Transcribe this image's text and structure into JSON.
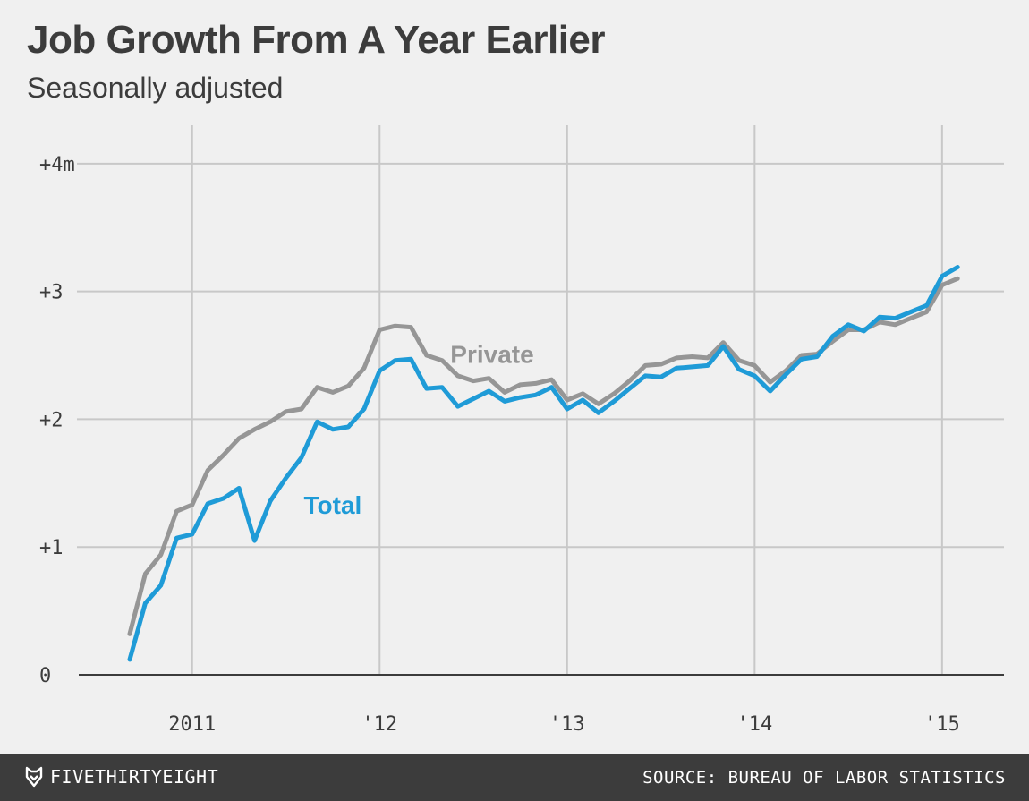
{
  "header": {
    "title": "Job Growth From A Year Earlier",
    "subtitle": "Seasonally adjusted"
  },
  "footer": {
    "brand": "FIVETHIRTYEIGHT",
    "brand_icon": "fivethirtyeight-fox-icon",
    "source": "SOURCE: BUREAU OF LABOR STATISTICS"
  },
  "colors": {
    "total": "#1f9bd7",
    "private": "#969696",
    "grid": "#c8c8c8",
    "baseline": "#3c3c3c"
  },
  "chart_data": {
    "type": "line",
    "title": "Job Growth From A Year Earlier",
    "subtitle": "Seasonally adjusted",
    "xlabel": "",
    "ylabel": "",
    "grid": true,
    "legend": "inline-labels",
    "x_unit": "years",
    "xlim": [
      2010.5,
      2015.33
    ],
    "ylim": [
      0,
      4.3
    ],
    "x_ticks": [
      {
        "value": 2011,
        "label": "2011"
      },
      {
        "value": 2012,
        "label": "'12"
      },
      {
        "value": 2013,
        "label": "'13"
      },
      {
        "value": 2014,
        "label": "'14"
      },
      {
        "value": 2015,
        "label": "'15"
      }
    ],
    "y_ticks": [
      {
        "value": 0,
        "label": "0"
      },
      {
        "value": 1,
        "label": "+1"
      },
      {
        "value": 2,
        "label": "+2"
      },
      {
        "value": 3,
        "label": "+3"
      },
      {
        "value": 4,
        "label": "+4m"
      }
    ],
    "x": [
      2010.667,
      2010.75,
      2010.833,
      2010.917,
      2011.0,
      2011.083,
      2011.167,
      2011.25,
      2011.333,
      2011.417,
      2011.5,
      2011.583,
      2011.667,
      2011.75,
      2011.833,
      2011.917,
      2012.0,
      2012.083,
      2012.167,
      2012.25,
      2012.333,
      2012.417,
      2012.5,
      2012.583,
      2012.667,
      2012.75,
      2012.833,
      2012.917,
      2013.0,
      2013.083,
      2013.167,
      2013.25,
      2013.333,
      2013.417,
      2013.5,
      2013.583,
      2013.667,
      2013.75,
      2013.833,
      2013.917,
      2014.0,
      2014.083,
      2014.167,
      2014.25,
      2014.333,
      2014.417,
      2014.5,
      2014.583,
      2014.667,
      2014.75,
      2014.833,
      2014.917,
      2015.0,
      2015.083
    ],
    "series": [
      {
        "name": "Private",
        "key": "private",
        "label_at": [
          2012.6,
          2.44
        ],
        "values": [
          0.32,
          0.79,
          0.94,
          1.28,
          1.33,
          1.6,
          1.72,
          1.85,
          1.92,
          1.98,
          2.06,
          2.08,
          2.25,
          2.21,
          2.26,
          2.4,
          2.7,
          2.73,
          2.72,
          2.5,
          2.46,
          2.34,
          2.3,
          2.32,
          2.21,
          2.27,
          2.28,
          2.31,
          2.15,
          2.2,
          2.12,
          2.2,
          2.3,
          2.42,
          2.43,
          2.48,
          2.49,
          2.48,
          2.6,
          2.46,
          2.42,
          2.29,
          2.38,
          2.5,
          2.51,
          2.61,
          2.7,
          2.7,
          2.76,
          2.74,
          2.79,
          2.84,
          3.05,
          3.1
        ]
      },
      {
        "name": "Total",
        "key": "total",
        "label_at": [
          2011.75,
          1.26
        ],
        "values": [
          0.12,
          0.56,
          0.7,
          1.07,
          1.1,
          1.34,
          1.38,
          1.46,
          1.05,
          1.36,
          1.54,
          1.7,
          1.98,
          1.92,
          1.94,
          2.08,
          2.38,
          2.46,
          2.47,
          2.24,
          2.25,
          2.1,
          2.16,
          2.22,
          2.14,
          2.17,
          2.19,
          2.25,
          2.08,
          2.15,
          2.05,
          2.14,
          2.24,
          2.34,
          2.33,
          2.4,
          2.41,
          2.42,
          2.57,
          2.39,
          2.34,
          2.22,
          2.35,
          2.47,
          2.49,
          2.65,
          2.74,
          2.69,
          2.8,
          2.79,
          2.84,
          2.89,
          3.12,
          3.19
        ]
      }
    ]
  }
}
